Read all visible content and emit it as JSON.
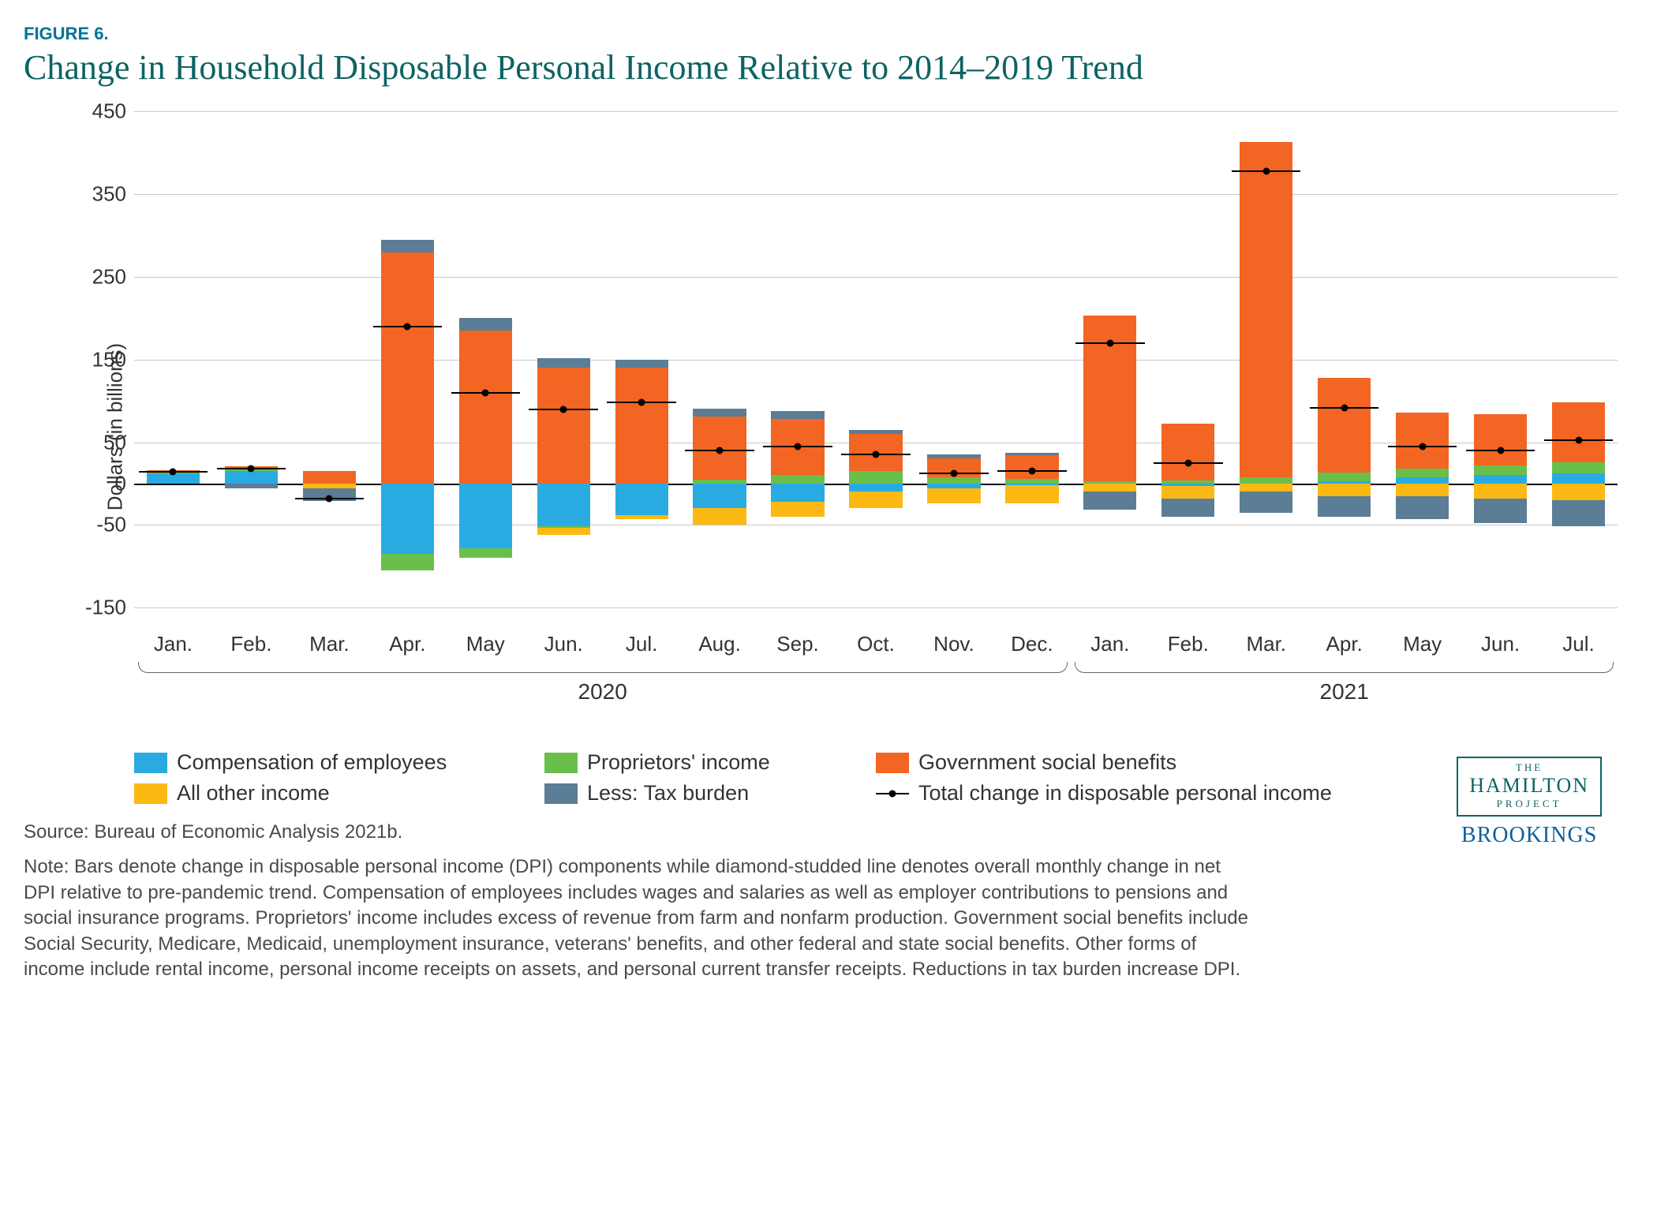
{
  "figure_label": "FIGURE 6.",
  "title": "Change in Household Disposable Personal Income Relative to 2014–2019 Trend",
  "y_axis_label": "Dollars (in billions)",
  "ylim": [
    -170,
    460
  ],
  "yticks": [
    -150,
    -50,
    0,
    50,
    150,
    250,
    350,
    450
  ],
  "ytick_labels": [
    "-150",
    "-50",
    "0",
    "50",
    "150",
    "250",
    "350",
    "450"
  ],
  "grid_color": "#c8c8c8",
  "background_color": "#ffffff",
  "bar_gap_ratio": 0.32,
  "colors": {
    "comp_employees": "#29abe2",
    "proprietors": "#6abf4b",
    "gov_benefits": "#f26522",
    "all_other": "#fdb913",
    "tax_burden": "#5b7d95",
    "marker": "#000000"
  },
  "series_order_pos": [
    "comp_employees",
    "proprietors",
    "all_other",
    "gov_benefits",
    "tax_burden"
  ],
  "series_order_neg": [
    "comp_employees",
    "proprietors",
    "all_other",
    "gov_benefits",
    "tax_burden"
  ],
  "months": [
    "Jan.",
    "Feb.",
    "Mar.",
    "Apr.",
    "May",
    "Jun.",
    "Jul.",
    "Aug.",
    "Sep.",
    "Oct.",
    "Nov.",
    "Dec.",
    "Jan.",
    "Feb.",
    "Mar.",
    "Apr.",
    "May",
    "Jun.",
    "Jul."
  ],
  "year_groups": [
    {
      "label": "2020",
      "start": 0,
      "end": 11
    },
    {
      "label": "2021",
      "start": 12,
      "end": 18
    }
  ],
  "data": [
    {
      "comp_employees": 12,
      "proprietors": 2,
      "all_other": 0,
      "gov_benefits": 2,
      "tax_burden": 0,
      "total": 14
    },
    {
      "comp_employees": 15,
      "proprietors": 3,
      "all_other": 0,
      "gov_benefits": 3,
      "tax_burden": -6,
      "total": 18
    },
    {
      "comp_employees": 0,
      "proprietors": 0,
      "all_other": -6,
      "gov_benefits": 15,
      "tax_burden": -15,
      "total": -18
    },
    {
      "comp_employees": -85,
      "proprietors": -20,
      "all_other": 0,
      "gov_benefits": 280,
      "tax_burden": 15,
      "total": 190
    },
    {
      "comp_employees": -78,
      "proprietors": -12,
      "all_other": 0,
      "gov_benefits": 185,
      "tax_burden": 15,
      "total": 110
    },
    {
      "comp_employees": -52,
      "proprietors": -2,
      "all_other": -8,
      "gov_benefits": 140,
      "tax_burden": 12,
      "total": 90
    },
    {
      "comp_employees": -38,
      "proprietors": 0,
      "all_other": -5,
      "gov_benefits": 140,
      "tax_burden": 10,
      "total": 98
    },
    {
      "comp_employees": -30,
      "proprietors": 5,
      "all_other": -20,
      "gov_benefits": 76,
      "tax_burden": 10,
      "total": 40
    },
    {
      "comp_employees": -22,
      "proprietors": 10,
      "all_other": -18,
      "gov_benefits": 68,
      "tax_burden": 10,
      "total": 45
    },
    {
      "comp_employees": -10,
      "proprietors": 15,
      "all_other": -20,
      "gov_benefits": 45,
      "tax_burden": 5,
      "total": 35
    },
    {
      "comp_employees": -6,
      "proprietors": 8,
      "all_other": -18,
      "gov_benefits": 22,
      "tax_burden": 5,
      "total": 12
    },
    {
      "comp_employees": -2,
      "proprietors": 6,
      "all_other": -22,
      "gov_benefits": 28,
      "tax_burden": 3,
      "total": 15
    },
    {
      "comp_employees": 0,
      "proprietors": 3,
      "all_other": -10,
      "gov_benefits": 200,
      "tax_burden": -22,
      "total": 170
    },
    {
      "comp_employees": -3,
      "proprietors": 4,
      "all_other": -15,
      "gov_benefits": 68,
      "tax_burden": -22,
      "total": 25
    },
    {
      "comp_employees": 0,
      "proprietors": 8,
      "all_other": -10,
      "gov_benefits": 405,
      "tax_burden": -25,
      "total": 378
    },
    {
      "comp_employees": 3,
      "proprietors": 10,
      "all_other": -15,
      "gov_benefits": 115,
      "tax_burden": -25,
      "total": 92
    },
    {
      "comp_employees": 8,
      "proprietors": 10,
      "all_other": -15,
      "gov_benefits": 68,
      "tax_burden": -28,
      "total": 45
    },
    {
      "comp_employees": 10,
      "proprietors": 12,
      "all_other": -18,
      "gov_benefits": 62,
      "tax_burden": -30,
      "total": 40
    },
    {
      "comp_employees": 12,
      "proprietors": 14,
      "all_other": -20,
      "gov_benefits": 72,
      "tax_burden": -32,
      "total": 52
    }
  ],
  "legend": [
    {
      "key": "comp_employees",
      "label": "Compensation of employees"
    },
    {
      "key": "proprietors",
      "label": "Proprietors' income"
    },
    {
      "key": "gov_benefits",
      "label": "Government social benefits"
    },
    {
      "key": "all_other",
      "label": "All other income"
    },
    {
      "key": "tax_burden",
      "label": "Less: Tax burden"
    },
    {
      "key": "total",
      "label": "Total change in disposable personal income",
      "marker": true
    }
  ],
  "source": "Source: Bureau of Economic Analysis 2021b.",
  "note": "Note: Bars denote change in disposable personal income (DPI) components while diamond-studded line denotes overall monthly change in net DPI relative to pre-pandemic trend. Compensation of employees includes wages and salaries as well as employer contributions to pensions and social insurance programs. Proprietors' income includes excess of revenue from farm and nonfarm production. Government social benefits include Social Security, Medicare, Medicaid, unemployment insurance, veterans' benefits, and other federal and state social benefits. Other forms of income include rental income, personal income receipts on assets, and personal current transfer receipts. Reductions in tax burden increase DPI.",
  "logo": {
    "hamilton_the": "THE",
    "hamilton_main": "HAMILTON",
    "hamilton_proj": "PROJECT",
    "brookings": "BROOKINGS"
  }
}
